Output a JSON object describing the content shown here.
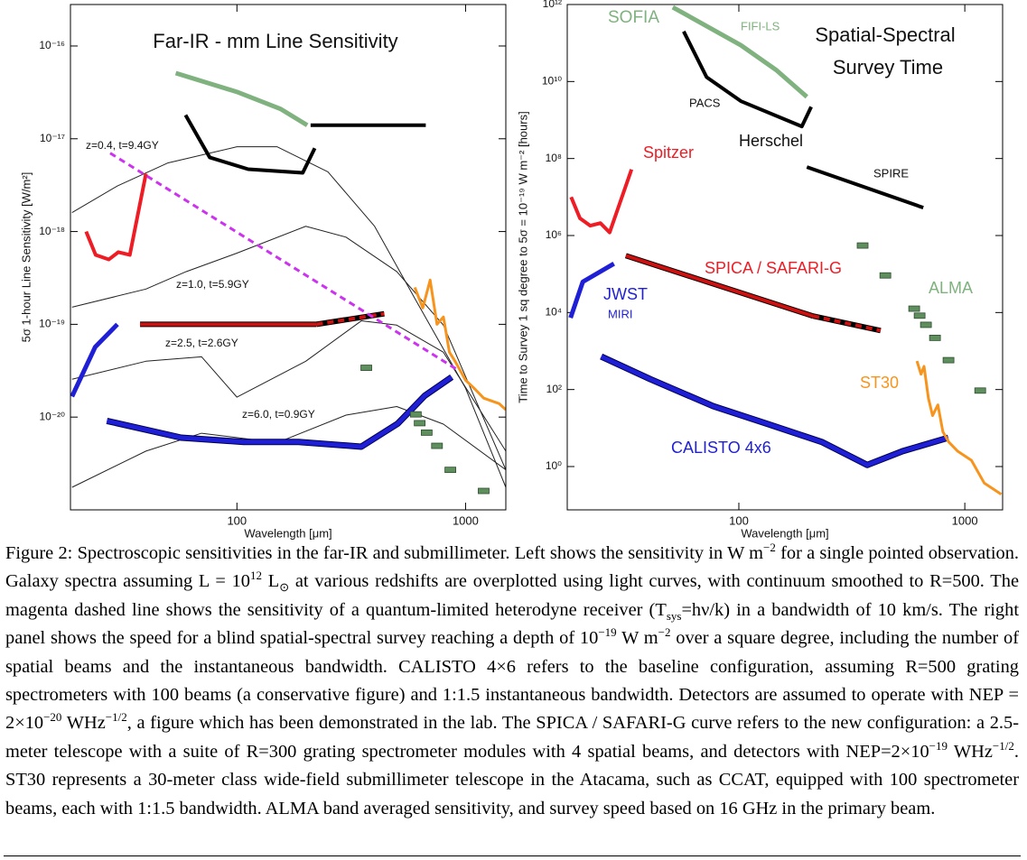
{
  "chart_data": [
    {
      "type": "line",
      "title": "Far-IR - mm Line Sensitivity",
      "xlabel": "Wavelength [μm]",
      "ylabel": "5σ 1-hour Line Sensitivity [W/m²]",
      "xlog": true,
      "ylog": true,
      "xlim": [
        18.7,
        1500
      ],
      "ylim": [
        1e-21,
        2.8e-16
      ],
      "xticks": [
        100,
        1000
      ],
      "yticks": [
        {
          "value": 1e-16,
          "label": "10⁻¹⁶"
        },
        {
          "value": 1e-17,
          "label": "10⁻¹⁷"
        },
        {
          "value": 1e-18,
          "label": "10⁻¹⁸"
        },
        {
          "value": 1e-19,
          "label": "10⁻¹⁹"
        },
        {
          "value": 1e-20,
          "label": "10⁻²⁰"
        }
      ],
      "annotations": [
        "z=0.4, t=9.4GY",
        "z=1.0, t=5.9GY",
        "z=2.5, t=2.6GY",
        "z=6.0, t=0.9GY"
      ],
      "series": [
        {
          "color": "#222222",
          "width": 1,
          "x": [
            19,
            30,
            50,
            100,
            150,
            250,
            400,
            600,
            1000,
            1500
          ],
          "values": [
            1.6e-18,
            3.1e-18,
            5.5e-18,
            8.2e-18,
            8.2e-18,
            4.4e-18,
            1.14e-18,
            1.9e-19,
            2.05e-20,
            1.75e-21
          ]
        },
        {
          "color": "#222222",
          "width": 1,
          "x": [
            19,
            40,
            60,
            100,
            200,
            300,
            500,
            800,
            1500
          ],
          "values": [
            1.53e-19,
            2.4e-19,
            3.7e-19,
            5.85e-19,
            1.14e-18,
            8.7e-19,
            3.7e-19,
            9.8e-20,
            2.7e-21
          ]
        },
        {
          "color": "#222222",
          "width": 1,
          "x": [
            19,
            40,
            70,
            100,
            200,
            350,
            500,
            800,
            1500
          ],
          "values": [
            2.56e-20,
            4e-20,
            4.47e-20,
            1.64e-20,
            4e-20,
            1.09e-19,
            9.8e-20,
            5e-20,
            4.3e-21
          ]
        },
        {
          "color": "#222222",
          "width": 1,
          "x": [
            19,
            40,
            70,
            150,
            300,
            500,
            800,
            1500
          ],
          "values": [
            1.75e-21,
            4.3e-21,
            6.7e-21,
            5.3e-21,
            1.05e-20,
            1.3e-20,
            8.4e-21,
            2.7e-21
          ]
        },
        {
          "color": "#7fb27f",
          "width": 5,
          "x": [
            54,
            100,
            155,
            203
          ],
          "values": [
            5.1e-17,
            3.2e-17,
            2.1e-17,
            1.4e-17
          ]
        },
        {
          "color": "#000000",
          "width": 4,
          "x": [
            59.6,
            76,
            112,
            194,
            219
          ],
          "values": [
            1.8e-17,
            6.3e-18,
            4.7e-18,
            4.3e-18,
            7.9e-18
          ]
        },
        {
          "color": "#000000",
          "width": 4,
          "x": [
            210,
            670
          ],
          "values": [
            1.4e-17,
            1.4e-17
          ]
        },
        {
          "color": "#ee1c25",
          "width": 4,
          "x": [
            21.9,
            24.1,
            27.5,
            30.3,
            34,
            40
          ],
          "values": [
            1e-18,
            5.6e-19,
            5e-19,
            6e-19,
            5.6e-19,
            4.2e-18
          ]
        },
        {
          "color": "#cc1111",
          "edge": "#000000",
          "width": 4,
          "x": [
            37.7,
            223
          ],
          "values": [
            1e-19,
            1e-19
          ]
        },
        {
          "color": "#cc1111",
          "edge": "#000000",
          "width": 4,
          "dash": true,
          "x": [
            223,
            441
          ],
          "values": [
            1e-19,
            1.3e-19
          ]
        },
        {
          "color": "#cc33ee",
          "width": 3,
          "dash": true,
          "x": [
            27.9,
            910
          ],
          "values": [
            7e-18,
            3.3e-20
          ]
        },
        {
          "color": "#1f1fd6",
          "width": 5,
          "x": [
            19,
            24,
            30
          ],
          "values": [
            1.67e-20,
            5.7e-20,
            1e-19
          ]
        },
        {
          "color": "#1f1fd6",
          "edge": "#000050",
          "width": 5,
          "x": [
            27,
            57,
            107,
            186,
            350,
            505,
            663,
            870
          ],
          "values": [
            9.1e-21,
            6e-21,
            5.4e-21,
            5.4e-21,
            4.8e-21,
            8.5e-21,
            1.7e-20,
            2.7e-20
          ]
        },
        {
          "color": "#f7941d",
          "width": 3,
          "x": [
            600,
            650,
            700,
            750,
            800,
            850,
            900,
            1000,
            1100,
            1200,
            1400,
            1500
          ],
          "values": [
            2.5e-19,
            1.5e-19,
            3e-19,
            1e-19,
            1.2e-19,
            5e-20,
            4e-20,
            2.5e-20,
            2e-20,
            1.6e-20,
            1.4e-20,
            1.2e-20
          ]
        },
        {
          "color": "#5f8f5f",
          "edge": "#2d4d2d",
          "marker": "rect",
          "x": [
            368,
            606,
            630,
            676,
            750,
            858,
            1200
          ],
          "values": [
            3.4e-20,
            1.07e-20,
            8.6e-21,
            6.8e-21,
            4.9e-21,
            2.7e-21,
            1.6e-21
          ]
        }
      ]
    },
    {
      "type": "line",
      "title": [
        "Spatial-Spectral",
        "Survey Time"
      ],
      "xlabel": "Wavelength [μm]",
      "ylabel": "Time to Survey 1 sq degree to 5σ = 10⁻¹⁹ W m⁻² [hours]",
      "xlog": true,
      "ylog": true,
      "xlim": [
        17.4,
        1470
      ],
      "ylim": [
        0.075,
        1000000000000.0
      ],
      "xticks": [
        100,
        1000
      ],
      "yticks": [
        {
          "value": 1000000000000.0,
          "label": "10¹²"
        },
        {
          "value": 10000000000.0,
          "label": "10¹⁰"
        },
        {
          "value": 100000000.0,
          "label": "10⁸"
        },
        {
          "value": 1000000.0,
          "label": "10⁶"
        },
        {
          "value": 10000.0,
          "label": "10⁴"
        },
        {
          "value": 100,
          "label": "10²"
        },
        {
          "value": 1,
          "label": "10⁰"
        }
      ],
      "annotations": [
        "SOFIA",
        "FIFI-LS",
        "PACS",
        "Herschel",
        "SPIRE",
        "Spitzer",
        "SPICA / SAFARI-G",
        "JWST",
        "MIRI",
        "CALISTO 4x6",
        "ST30",
        "ALMA"
      ],
      "series": [
        {
          "color": "#7fb27f",
          "width": 5,
          "x": [
            51,
            102,
            147,
            200
          ],
          "values": [
            850000000000.0,
            88000000000.0,
            19500000000.0,
            4000000000.0
          ]
        },
        {
          "color": "#000000",
          "width": 4,
          "x": [
            57,
            72,
            102,
            190,
            209
          ],
          "values": [
            200000000000.0,
            13000000000.0,
            3100000000.0,
            680000000.0,
            2200000000.0
          ]
        },
        {
          "color": "#000000",
          "width": 4,
          "x": [
            200,
            655
          ],
          "values": [
            60000000.0,
            5300000.0
          ]
        },
        {
          "color": "#ee1c25",
          "width": 4,
          "x": [
            18.1,
            19.8,
            22,
            24.4,
            26.8,
            33.5
          ],
          "values": [
            10000000.0,
            2800000.0,
            1800000.0,
            2100000.0,
            1200000.0,
            52000000.0
          ]
        },
        {
          "color": "#cc1111",
          "edge": "#000000",
          "width": 4,
          "x": [
            31.6,
            213
          ],
          "values": [
            300000.0,
            8100
          ]
        },
        {
          "color": "#cc1111",
          "edge": "#000000",
          "width": 4,
          "dash": true,
          "x": [
            213,
            424
          ],
          "values": [
            8100,
            3400
          ]
        },
        {
          "color": "#1f1fd6",
          "width": 5,
          "x": [
            18,
            20.4,
            28
          ],
          "values": [
            7300,
            63000,
            186000
          ]
        },
        {
          "color": "#1f1fd6",
          "edge": "#000050",
          "width": 5,
          "x": [
            24.6,
            40.6,
            77,
            135,
            234,
            370,
            530,
            845
          ],
          "values": [
            720,
            186,
            37,
            12.6,
            4.3,
            1.1,
            2.5,
            5.6
          ]
        },
        {
          "color": "#f7941d",
          "width": 3,
          "x": [
            614,
            640,
            660,
            690,
            720,
            760,
            800,
            850,
            930,
            1070,
            1220,
            1450
          ],
          "values": [
            550,
            250,
            400,
            60,
            21,
            40,
            8,
            4.3,
            2.5,
            1.45,
            0.37,
            0.19
          ]
        },
        {
          "color": "#5f8f5f",
          "edge": "#2d4d2d",
          "marker": "rect",
          "x": [
            353,
            445,
            597,
            631,
            673,
            738,
            847,
            1170
          ],
          "values": [
            550000,
            92000,
            12600,
            8300,
            4800,
            2200,
            580,
            94
          ]
        }
      ]
    }
  ],
  "caption": [
    "Figure 2: Spectroscopic sensitivities in the far-IR and submillimeter. Left shows the sensitivity in W m",
    {
      "sup": "−2"
    },
    " for a single pointed observation. Galaxy spectra assuming L = 10",
    {
      "sup": "12"
    },
    " L",
    {
      "sub": "⊙"
    },
    " at various redshifts are overplotted using light curves, with continuum smoothed to R=500. The magenta dashed line shows the sensitivity of a quantum-limited heterodyne receiver (T",
    {
      "sub": "sys"
    },
    "=hν/k) in a bandwidth of 10 km/s. The right panel shows the speed for a blind spatial-spectral survey reaching a depth of 10",
    {
      "sup": "−19"
    },
    " W m",
    {
      "sup": "−2"
    },
    " over a square degree, including the number of spatial beams and the instantaneous bandwidth. CALISTO 4×6 refers to the baseline configuration, assuming R=500 grating spectrometers with 100 beams (a conservative figure) and 1:1.5 instantaneous bandwidth. Detectors are assumed to operate with NEP = 2×10",
    {
      "sup": "−20"
    },
    " WHz",
    {
      "sup": "−1/2"
    },
    ", a figure which has been demonstrated in the lab. The SPICA / SAFARI-G curve refers to the new configuration: a 2.5-meter telescope with a suite of R=300 grating spectrometer modules with 4 spatial beams, and detectors with NEP=2×10",
    {
      "sup": "−19"
    },
    " WHz",
    {
      "sup": "−1/2"
    },
    ". ST30 represents a 30-meter class wide-field submillimeter telescope in the Atacama, such as CCAT, equipped with 100 spectrometer beams, each with 1:1.5 bandwidth. ALMA band averaged sensitivity, and survey speed based on 16 GHz in the primary beam."
  ]
}
